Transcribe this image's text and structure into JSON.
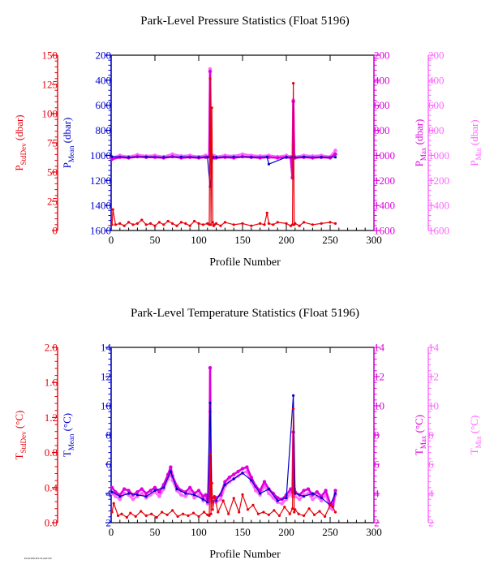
{
  "footer_text": "PLOTTED BY: FLOATVIZ",
  "chart_data": [
    {
      "type": "line",
      "title": "Park-Level Pressure Statistics (Float 5196)",
      "xlabel": "Profile Number",
      "xlim": [
        0,
        300
      ],
      "xticks": [
        0,
        50,
        100,
        150,
        200,
        250,
        300
      ],
      "axes": [
        {
          "id": "std",
          "main": "P",
          "sub": "StdDev",
          "unit": " (dbar)",
          "color": "#e8000b",
          "lim": [
            0,
            150
          ],
          "inverted": false,
          "ticks": [
            0,
            25,
            50,
            75,
            100,
            125,
            150
          ]
        },
        {
          "id": "mean",
          "main": "P",
          "sub": "Mean",
          "unit": " (dbar)",
          "color": "#0000cc",
          "lim": [
            200,
            1600
          ],
          "inverted": true,
          "ticks": [
            200,
            400,
            600,
            800,
            1000,
            1200,
            1400,
            1600
          ]
        },
        {
          "id": "max",
          "main": "P",
          "sub": "Max",
          "unit": " (dbar)",
          "color": "#dd00dd",
          "lim": [
            200,
            1600
          ],
          "inverted": true,
          "ticks": [
            200,
            400,
            600,
            800,
            1000,
            1200,
            1400,
            1600
          ]
        },
        {
          "id": "min",
          "main": "P",
          "sub": "Min",
          "unit": " (dbar)",
          "color": "#ff66ff",
          "lim": [
            200,
            1600
          ],
          "inverted": true,
          "ticks": [
            200,
            400,
            600,
            800,
            1000,
            1200,
            1400,
            1600
          ]
        }
      ],
      "series": [
        {
          "axis": "min",
          "x": [
            1,
            10,
            20,
            30,
            40,
            50,
            60,
            70,
            80,
            90,
            100,
            108,
            112,
            113,
            114,
            116,
            118,
            120,
            130,
            140,
            150,
            160,
            170,
            180,
            190,
            200,
            205,
            207,
            208,
            209,
            210,
            220,
            230,
            240,
            250,
            256
          ],
          "y": [
            1020,
            1000,
            1010,
            995,
            1005,
            1000,
            1010,
            990,
            1005,
            1000,
            1010,
            1000,
            1010,
            310,
            1010,
            1000,
            1005,
            1010,
            1000,
            1005,
            990,
            1000,
            1005,
            1000,
            1010,
            1000,
            1010,
            1170,
            560,
            1000,
            1010,
            1000,
            1005,
            1000,
            1010,
            960
          ]
        },
        {
          "axis": "max",
          "x": [
            1,
            10,
            20,
            30,
            40,
            50,
            60,
            70,
            80,
            90,
            100,
            108,
            112,
            113,
            114,
            116,
            118,
            120,
            130,
            140,
            150,
            160,
            170,
            180,
            190,
            200,
            205,
            207,
            208,
            209,
            210,
            220,
            230,
            240,
            250,
            256
          ],
          "y": [
            1030,
            1015,
            1020,
            1010,
            1015,
            1015,
            1020,
            1010,
            1020,
            1015,
            1020,
            1015,
            1010,
            330,
            1020,
            1015,
            1020,
            1020,
            1015,
            1020,
            1010,
            1015,
            1020,
            1015,
            1020,
            1015,
            1020,
            1180,
            570,
            1015,
            1020,
            1015,
            1020,
            1015,
            1020,
            990
          ]
        },
        {
          "axis": "mean",
          "x": [
            1,
            20,
            40,
            60,
            80,
            100,
            110,
            113,
            116,
            120,
            140,
            160,
            178,
            180,
            200,
            207,
            209,
            220,
            240,
            256
          ],
          "y": [
            1010,
            1015,
            1012,
            1015,
            1012,
            1015,
            1015,
            1250,
            1015,
            1015,
            1012,
            1015,
            1012,
            1070,
            1015,
            1015,
            1015,
            1012,
            1015,
            1015
          ]
        },
        {
          "axis": "std",
          "x": [
            1,
            2,
            5,
            10,
            15,
            20,
            25,
            30,
            35,
            40,
            45,
            50,
            55,
            60,
            65,
            70,
            75,
            80,
            85,
            90,
            95,
            100,
            105,
            110,
            112,
            113,
            114,
            115,
            116,
            117,
            118,
            120,
            125,
            130,
            140,
            150,
            160,
            170,
            175,
            178,
            180,
            185,
            190,
            200,
            205,
            207,
            208,
            209,
            210,
            215,
            220,
            230,
            240,
            250,
            256
          ],
          "y": [
            5,
            18,
            5,
            6,
            4,
            7,
            5,
            6,
            9,
            5,
            6,
            4,
            7,
            5,
            8,
            6,
            4,
            7,
            6,
            4,
            8,
            6,
            5,
            6,
            5,
            130,
            5,
            105,
            7,
            4,
            5,
            6,
            4,
            7,
            5,
            6,
            4,
            6,
            5,
            15,
            6,
            5,
            7,
            6,
            4,
            5,
            126,
            5,
            6,
            4,
            7,
            5,
            6,
            7,
            6
          ]
        }
      ]
    },
    {
      "type": "line",
      "title": "Park-Level Temperature Statistics (Float 5196)",
      "xlabel": "Profile Number",
      "xlim": [
        0,
        300
      ],
      "xticks": [
        0,
        50,
        100,
        150,
        200,
        250,
        300
      ],
      "axes": [
        {
          "id": "std",
          "main": "T",
          "sub": "StdDev",
          "unit": " (°C)",
          "color": "#e8000b",
          "lim": [
            0,
            2
          ],
          "inverted": false,
          "ticks": [
            0.0,
            0.4,
            0.8,
            1.2,
            1.6,
            2.0
          ],
          "decimals": 1
        },
        {
          "id": "mean",
          "main": "T",
          "sub": "Mean",
          "unit": " (°C)",
          "color": "#0000cc",
          "lim": [
            2,
            14
          ],
          "inverted": false,
          "ticks": [
            2,
            4,
            6,
            8,
            10,
            12,
            14
          ],
          "decimals": 0
        },
        {
          "id": "max",
          "main": "T",
          "sub": "Max",
          "unit": " (°C)",
          "color": "#dd00dd",
          "lim": [
            2,
            14
          ],
          "inverted": false,
          "ticks": [
            2,
            4,
            6,
            8,
            10,
            12,
            14
          ],
          "decimals": 0
        },
        {
          "id": "min",
          "main": "T",
          "sub": "Min",
          "unit": " (°C)",
          "color": "#ff66ff",
          "lim": [
            2,
            14
          ],
          "inverted": false,
          "ticks": [
            2,
            4,
            6,
            8,
            10,
            12,
            14
          ],
          "decimals": 0
        }
      ],
      "series": [
        {
          "axis": "min",
          "x": [
            1,
            5,
            10,
            15,
            20,
            25,
            30,
            35,
            40,
            45,
            50,
            55,
            60,
            65,
            68,
            70,
            75,
            80,
            85,
            90,
            95,
            100,
            105,
            108,
            110,
            112,
            113,
            114,
            115,
            120,
            125,
            130,
            135,
            140,
            145,
            150,
            155,
            160,
            165,
            170,
            175,
            180,
            185,
            190,
            195,
            200,
            205,
            207,
            208,
            209,
            210,
            215,
            220,
            225,
            230,
            235,
            240,
            245,
            250,
            253,
            256
          ],
          "y": [
            4.0,
            3.8,
            3.6,
            4.0,
            3.9,
            3.6,
            3.8,
            4.0,
            3.7,
            3.9,
            4.1,
            3.8,
            4.3,
            5.0,
            5.4,
            4.9,
            4.2,
            3.9,
            3.8,
            4.1,
            3.7,
            3.9,
            3.5,
            3.6,
            3.3,
            3.5,
            9.6,
            3.6,
            3.4,
            3.4,
            3.6,
            4.5,
            4.8,
            5.0,
            5.2,
            5.4,
            5.5,
            4.8,
            4.2,
            3.9,
            4.5,
            4.0,
            3.7,
            3.4,
            3.3,
            3.6,
            4.0,
            3.8,
            4.5,
            4.0,
            3.8,
            3.6,
            3.9,
            4.0,
            3.6,
            3.8,
            3.5,
            3.9,
            3.0,
            2.9,
            3.9
          ]
        },
        {
          "axis": "max",
          "x": [
            1,
            5,
            10,
            15,
            20,
            25,
            30,
            35,
            40,
            45,
            50,
            55,
            60,
            65,
            68,
            70,
            75,
            80,
            85,
            90,
            95,
            100,
            105,
            108,
            110,
            112,
            113,
            114,
            115,
            120,
            125,
            130,
            135,
            140,
            145,
            150,
            155,
            160,
            165,
            170,
            175,
            180,
            185,
            190,
            195,
            200,
            205,
            207,
            208,
            209,
            210,
            215,
            220,
            225,
            230,
            235,
            240,
            245,
            250,
            253,
            256
          ],
          "y": [
            4.4,
            4.1,
            3.9,
            4.3,
            4.2,
            3.9,
            4.1,
            4.3,
            4.0,
            4.2,
            4.4,
            4.1,
            4.6,
            5.3,
            5.8,
            5.2,
            4.5,
            4.2,
            4.1,
            4.4,
            4.0,
            4.2,
            3.8,
            3.9,
            3.6,
            3.8,
            12.6,
            3.9,
            3.7,
            3.7,
            3.9,
            4.8,
            5.1,
            5.3,
            5.5,
            5.7,
            5.8,
            5.1,
            4.5,
            4.2,
            4.8,
            4.3,
            4.0,
            3.7,
            3.6,
            3.9,
            4.3,
            4.1,
            8.2,
            4.3,
            4.1,
            3.9,
            4.2,
            4.3,
            3.9,
            4.1,
            3.8,
            4.2,
            3.3,
            3.2,
            4.2
          ]
        },
        {
          "axis": "mean",
          "x": [
            1,
            10,
            20,
            30,
            40,
            50,
            60,
            68,
            75,
            85,
            95,
            105,
            110,
            113,
            115,
            120,
            130,
            140,
            150,
            160,
            170,
            180,
            190,
            200,
            208,
            210,
            220,
            230,
            240,
            250,
            256
          ],
          "y": [
            4.1,
            3.8,
            4.0,
            3.9,
            3.8,
            4.2,
            4.4,
            5.5,
            4.3,
            4.0,
            3.9,
            3.6,
            3.4,
            10.2,
            3.5,
            3.5,
            4.6,
            5.0,
            5.4,
            4.9,
            4.0,
            4.3,
            3.5,
            3.7,
            10.7,
            4.0,
            3.8,
            4.0,
            3.7,
            3.2,
            4.0
          ]
        },
        {
          "axis": "std",
          "x": [
            1,
            3,
            8,
            12,
            18,
            22,
            28,
            34,
            40,
            46,
            52,
            58,
            64,
            70,
            76,
            82,
            88,
            94,
            100,
            106,
            110,
            112,
            113,
            114,
            115,
            116,
            118,
            122,
            128,
            134,
            140,
            146,
            150,
            156,
            162,
            168,
            174,
            180,
            186,
            192,
            198,
            204,
            207,
            208,
            209,
            210,
            214,
            220,
            226,
            232,
            238,
            244,
            250,
            253,
            256
          ],
          "y": [
            0.12,
            0.22,
            0.08,
            0.1,
            0.06,
            0.11,
            0.07,
            0.13,
            0.08,
            0.1,
            0.06,
            0.12,
            0.09,
            0.14,
            0.07,
            0.1,
            0.08,
            0.11,
            0.07,
            0.12,
            0.09,
            0.08,
            0.78,
            0.1,
            0.45,
            0.15,
            0.3,
            0.12,
            0.25,
            0.1,
            0.28,
            0.12,
            0.32,
            0.15,
            0.2,
            0.1,
            0.12,
            0.09,
            0.14,
            0.08,
            0.18,
            0.1,
            0.16,
            1.3,
            0.12,
            0.15,
            0.1,
            0.08,
            0.16,
            0.09,
            0.13,
            0.07,
            0.2,
            0.18,
            0.12
          ]
        }
      ]
    }
  ]
}
